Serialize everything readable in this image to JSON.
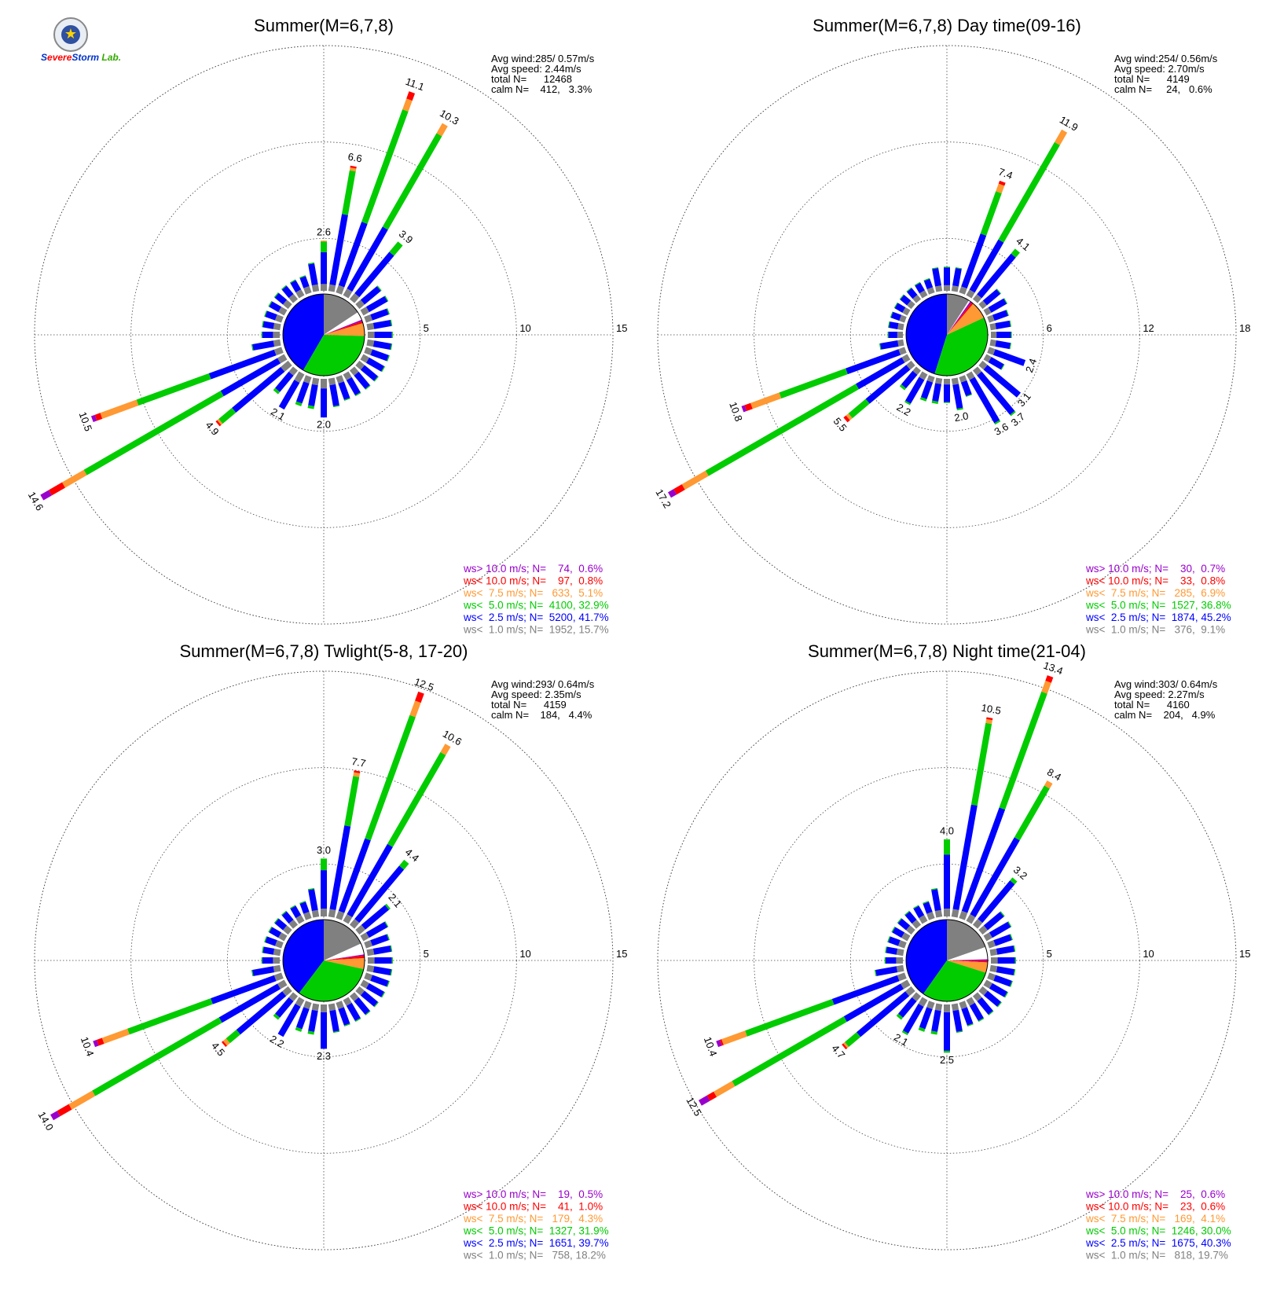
{
  "logo": {
    "text": "Severe Storm Lab."
  },
  "chart_data": [
    {
      "type": "polar-bar",
      "title": "Summer(M=6,7,8)",
      "ring_labels": [
        "5",
        "10",
        "15"
      ],
      "ring_max": 15,
      "stats": {
        "avg_wind": "Avg wind:285/ 0.57m/s",
        "avg_speed": "Avg speed: 2.44m/s",
        "total": "total N=      12468",
        "calm": "calm N=    412,   3.3%"
      },
      "legend": [
        {
          "text": "ws> 10.0 m/s; N=    74,  0.6%",
          "color": "#9900cc"
        },
        {
          "text": "ws< 10.0 m/s; N=    97,  0.8%",
          "color": "#ff0000"
        },
        {
          "text": "ws<  7.5 m/s; N=   633,  5.1%",
          "color": "#ff9933"
        },
        {
          "text": "ws<  5.0 m/s; N=  4100, 32.9%",
          "color": "#00cc00"
        },
        {
          "text": "ws<  2.5 m/s; N=  5200, 41.7%",
          "color": "#0000ff"
        },
        {
          "text": "ws<  1.0 m/s; N=  1952, 15.7%",
          "color": "#808080"
        }
      ],
      "labeled_directions": [
        {
          "dir": 0,
          "total": 2.6,
          "label": "2.6",
          "comp": [
            0.35,
            1.65,
            0.55,
            0.05,
            0,
            0
          ]
        },
        {
          "dir": 10,
          "total": 6.6,
          "label": "6.6",
          "comp": [
            0.35,
            3.7,
            2.3,
            0.15,
            0.1,
            0
          ]
        },
        {
          "dir": 20,
          "total": 11.1,
          "label": "11.1",
          "comp": [
            0.4,
            3.5,
            6.2,
            0.6,
            0.4,
            0
          ]
        },
        {
          "dir": 30,
          "total": 10.3,
          "label": "10.3",
          "comp": [
            0.4,
            3.7,
            5.6,
            0.6,
            0,
            0
          ]
        },
        {
          "dir": 40,
          "total": 3.9,
          "label": "3.9",
          "comp": [
            0.4,
            2.8,
            0.7,
            0,
            0,
            0
          ]
        },
        {
          "dir": 180,
          "total": 2.0,
          "label": "2.0",
          "comp": [
            0.5,
            1.5,
            0,
            0,
            0,
            0
          ]
        },
        {
          "dir": 210,
          "total": 2.1,
          "label": "2.1",
          "comp": [
            0.5,
            1.6,
            0,
            0,
            0,
            0
          ]
        },
        {
          "dir": 230,
          "total": 4.9,
          "label": "4.9",
          "comp": [
            0.5,
            3.3,
            0.9,
            0.1,
            0.1,
            0
          ]
        },
        {
          "dir": 240,
          "total": 14.6,
          "label": "14.6",
          "comp": [
            0.4,
            3.4,
            8.2,
            1.3,
            0.8,
            0.5
          ]
        },
        {
          "dir": 250,
          "total": 10.5,
          "label": "10.5",
          "comp": [
            0.4,
            3.6,
            4.0,
            2.0,
            0.3,
            0.2
          ]
        }
      ],
      "pie": [
        {
          "label": "ws< 2.5",
          "percent": 41.7,
          "color": "#0000ff"
        },
        {
          "label": "ws< 1.0",
          "percent": 15.7,
          "color": "#808080"
        },
        {
          "label": "calm",
          "percent": 3.3,
          "color": "#ffffff"
        },
        {
          "label": "ws> 10.0",
          "percent": 0.6,
          "color": "#9900cc"
        },
        {
          "label": "ws< 10.0",
          "percent": 0.8,
          "color": "#ff0000"
        },
        {
          "label": "ws< 7.5",
          "percent": 5.1,
          "color": "#ff9933"
        },
        {
          "label": "ws< 5.0",
          "percent": 32.9,
          "color": "#00cc00"
        }
      ]
    },
    {
      "type": "polar-bar",
      "title": "Summer(M=6,7,8) Day time(09-16)",
      "ring_labels": [
        "6",
        "12",
        "18"
      ],
      "ring_max": 18,
      "stats": {
        "avg_wind": "Avg wind:254/ 0.56m/s",
        "avg_speed": "Avg speed: 2.70m/s",
        "total": "total N=      4149",
        "calm": "calm N=     24,   0.6%"
      },
      "legend": [
        {
          "text": "ws> 10.0 m/s; N=    30,  0.7%",
          "color": "#9900cc"
        },
        {
          "text": "ws< 10.0 m/s; N=    33,  0.8%",
          "color": "#ff0000"
        },
        {
          "text": "ws<  7.5 m/s; N=   285,  6.9%",
          "color": "#ff9933"
        },
        {
          "text": "ws<  5.0 m/s; N=  1527, 36.8%",
          "color": "#00cc00"
        },
        {
          "text": "ws<  2.5 m/s; N=  1874, 45.2%",
          "color": "#0000ff"
        },
        {
          "text": "ws<  1.0 m/s; N=   376,  9.1%",
          "color": "#808080"
        }
      ],
      "labeled_directions": [
        {
          "dir": 20,
          "total": 7.4,
          "label": "7.4",
          "comp": [
            0.4,
            3.5,
            2.8,
            0.5,
            0.2,
            0
          ]
        },
        {
          "dir": 30,
          "total": 11.9,
          "label": "11.9",
          "comp": [
            0.4,
            3.6,
            7.0,
            0.9,
            0,
            0
          ]
        },
        {
          "dir": 40,
          "total": 4.1,
          "label": "4.1",
          "comp": [
            0.4,
            3.3,
            0.4,
            0,
            0,
            0
          ]
        },
        {
          "dir": 110,
          "total": 2.4,
          "label": "2.4",
          "comp": [
            0.4,
            2.0,
            0,
            0,
            0,
            0
          ]
        },
        {
          "dir": 130,
          "total": 3.1,
          "label": "3.1",
          "comp": [
            0.4,
            2.7,
            0,
            0,
            0,
            0
          ]
        },
        {
          "dir": 140,
          "total": 3.7,
          "label": "3.7",
          "comp": [
            0.4,
            3.2,
            0.1,
            0,
            0,
            0
          ]
        },
        {
          "dir": 150,
          "total": 3.6,
          "label": "3.6",
          "comp": [
            0.4,
            3.1,
            0.1,
            0,
            0,
            0
          ]
        },
        {
          "dir": 170,
          "total": 2.0,
          "label": "2.0",
          "comp": [
            0.4,
            1.5,
            0.1,
            0,
            0,
            0
          ]
        },
        {
          "dir": 210,
          "total": 2.2,
          "label": "2.2",
          "comp": [
            0.4,
            1.7,
            0.1,
            0,
            0,
            0
          ]
        },
        {
          "dir": 230,
          "total": 5.5,
          "label": "5.5",
          "comp": [
            0.4,
            3.3,
            1.4,
            0.2,
            0.2,
            0
          ]
        },
        {
          "dir": 240,
          "total": 17.2,
          "label": "17.2",
          "comp": [
            0.4,
            3.3,
            10.8,
            1.7,
            0.6,
            0.4
          ]
        },
        {
          "dir": 250,
          "total": 10.8,
          "label": "10.8",
          "comp": [
            0.4,
            3.5,
            4.4,
            1.9,
            0.4,
            0.2
          ]
        }
      ],
      "pie": [
        {
          "label": "ws< 2.5",
          "percent": 45.2,
          "color": "#0000ff"
        },
        {
          "label": "ws< 1.0",
          "percent": 9.1,
          "color": "#808080"
        },
        {
          "label": "calm",
          "percent": 0.6,
          "color": "#ffffff"
        },
        {
          "label": "ws> 10.0",
          "percent": 0.7,
          "color": "#9900cc"
        },
        {
          "label": "ws< 10.0",
          "percent": 0.8,
          "color": "#ff0000"
        },
        {
          "label": "ws< 7.5",
          "percent": 6.9,
          "color": "#ff9933"
        },
        {
          "label": "ws< 5.0",
          "percent": 36.8,
          "color": "#00cc00"
        }
      ]
    },
    {
      "type": "polar-bar",
      "title": "Summer(M=6,7,8) Twlight(5-8, 17-20)",
      "ring_labels": [
        "5",
        "10",
        "15"
      ],
      "ring_max": 15,
      "stats": {
        "avg_wind": "Avg wind:293/ 0.64m/s",
        "avg_speed": "Avg speed: 2.35m/s",
        "total": "total N=      4159",
        "calm": "calm N=    184,   4.4%"
      },
      "legend": [
        {
          "text": "ws> 10.0 m/s; N=    19,  0.5%",
          "color": "#9900cc"
        },
        {
          "text": "ws< 10.0 m/s; N=    41,  1.0%",
          "color": "#ff0000"
        },
        {
          "text": "ws<  7.5 m/s; N=   179,  4.3%",
          "color": "#ff9933"
        },
        {
          "text": "ws<  5.0 m/s; N=  1327, 31.9%",
          "color": "#00cc00"
        },
        {
          "text": "ws<  2.5 m/s; N=  1651, 39.7%",
          "color": "#0000ff"
        },
        {
          "text": "ws<  1.0 m/s; N=   758, 18.2%",
          "color": "#808080"
        }
      ],
      "labeled_directions": [
        {
          "dir": 0,
          "total": 3.0,
          "label": "3.0",
          "comp": [
            0.4,
            2.0,
            0.6,
            0,
            0,
            0
          ]
        },
        {
          "dir": 10,
          "total": 7.7,
          "label": "7.7",
          "comp": [
            0.4,
            4.4,
            2.6,
            0.2,
            0.1,
            0
          ]
        },
        {
          "dir": 20,
          "total": 12.5,
          "label": "12.5",
          "comp": [
            0.4,
            4.0,
            6.8,
            0.8,
            0.5,
            0
          ]
        },
        {
          "dir": 30,
          "total": 10.6,
          "label": "10.6",
          "comp": [
            0.4,
            4.2,
            5.5,
            0.5,
            0,
            0
          ]
        },
        {
          "dir": 40,
          "total": 4.4,
          "label": "4.4",
          "comp": [
            0.4,
            3.6,
            0.4,
            0,
            0,
            0
          ]
        },
        {
          "dir": 50,
          "total": 2.1,
          "label": "2.1",
          "comp": [
            0.4,
            1.6,
            0.1,
            0,
            0,
            0
          ]
        },
        {
          "dir": 180,
          "total": 2.3,
          "label": "2.3",
          "comp": [
            0.4,
            1.9,
            0,
            0,
            0,
            0
          ]
        },
        {
          "dir": 210,
          "total": 2.2,
          "label": "2.2",
          "comp": [
            0.4,
            1.8,
            0,
            0,
            0,
            0
          ]
        },
        {
          "dir": 230,
          "total": 4.5,
          "label": "4.5",
          "comp": [
            0.4,
            3.1,
            0.7,
            0.2,
            0.1,
            0
          ]
        },
        {
          "dir": 240,
          "total": 14.0,
          "label": "14.0",
          "comp": [
            0.4,
            3.5,
            7.6,
            1.4,
            0.7,
            0.4
          ]
        },
        {
          "dir": 250,
          "total": 10.4,
          "label": "10.4",
          "comp": [
            0.4,
            3.5,
            4.6,
            1.4,
            0.3,
            0.2
          ]
        }
      ],
      "pie": [
        {
          "label": "ws< 2.5",
          "percent": 39.7,
          "color": "#0000ff"
        },
        {
          "label": "ws< 1.0",
          "percent": 18.2,
          "color": "#808080"
        },
        {
          "label": "calm",
          "percent": 4.4,
          "color": "#ffffff"
        },
        {
          "label": "ws> 10.0",
          "percent": 0.5,
          "color": "#9900cc"
        },
        {
          "label": "ws< 10.0",
          "percent": 1.0,
          "color": "#ff0000"
        },
        {
          "label": "ws< 7.5",
          "percent": 4.3,
          "color": "#ff9933"
        },
        {
          "label": "ws< 5.0",
          "percent": 31.9,
          "color": "#00cc00"
        }
      ]
    },
    {
      "type": "polar-bar",
      "title": "Summer(M=6,7,8) Night time(21-04)",
      "ring_labels": [
        "5",
        "10",
        "15"
      ],
      "ring_max": 15,
      "stats": {
        "avg_wind": "Avg wind:303/ 0.64m/s",
        "avg_speed": "Avg speed: 2.27m/s",
        "total": "total N=      4160",
        "calm": "calm N=    204,   4.9%"
      },
      "legend": [
        {
          "text": "ws> 10.0 m/s; N=    25,  0.6%",
          "color": "#9900cc"
        },
        {
          "text": "ws< 10.0 m/s; N=    23,  0.6%",
          "color": "#ff0000"
        },
        {
          "text": "ws<  7.5 m/s; N=   169,  4.1%",
          "color": "#ff9933"
        },
        {
          "text": "ws<  5.0 m/s; N=  1246, 30.0%",
          "color": "#00cc00"
        },
        {
          "text": "ws<  2.5 m/s; N=  1675, 40.3%",
          "color": "#0000ff"
        },
        {
          "text": "ws<  1.0 m/s; N=   818, 19.7%",
          "color": "#808080"
        }
      ],
      "labeled_directions": [
        {
          "dir": 0,
          "total": 4.0,
          "label": "4.0",
          "comp": [
            0.4,
            2.8,
            0.8,
            0,
            0,
            0
          ]
        },
        {
          "dir": 10,
          "total": 10.5,
          "label": "10.5",
          "comp": [
            0.4,
            5.5,
            4.3,
            0.2,
            0.1,
            0
          ]
        },
        {
          "dir": 20,
          "total": 13.4,
          "label": "13.4",
          "comp": [
            0.4,
            5.7,
            6.4,
            0.6,
            0.3,
            0
          ]
        },
        {
          "dir": 30,
          "total": 8.4,
          "label": "8.4",
          "comp": [
            0.4,
            4.6,
            3.1,
            0.3,
            0,
            0
          ]
        },
        {
          "dir": 40,
          "total": 3.2,
          "label": "3.2",
          "comp": [
            0.4,
            2.6,
            0.2,
            0,
            0,
            0
          ]
        },
        {
          "dir": 180,
          "total": 2.5,
          "label": "2.5",
          "comp": [
            0.4,
            2.0,
            0.1,
            0,
            0,
            0
          ]
        },
        {
          "dir": 210,
          "total": 2.1,
          "label": "2.1",
          "comp": [
            0.4,
            1.6,
            0.1,
            0,
            0,
            0
          ]
        },
        {
          "dir": 230,
          "total": 4.7,
          "label": "4.7",
          "comp": [
            0.4,
            3.3,
            0.8,
            0.1,
            0.1,
            0
          ]
        },
        {
          "dir": 240,
          "total": 12.5,
          "label": "12.5",
          "comp": [
            0.4,
            3.4,
            6.7,
            1.1,
            0.4,
            0.5
          ]
        },
        {
          "dir": 250,
          "total": 10.4,
          "label": "10.4",
          "comp": [
            0.4,
            3.6,
            4.8,
            1.3,
            0.1,
            0.2
          ]
        }
      ],
      "pie": [
        {
          "label": "ws< 2.5",
          "percent": 40.3,
          "color": "#0000ff"
        },
        {
          "label": "ws< 1.0",
          "percent": 19.7,
          "color": "#808080"
        },
        {
          "label": "calm",
          "percent": 4.9,
          "color": "#ffffff"
        },
        {
          "label": "ws> 10.0",
          "percent": 0.6,
          "color": "#9900cc"
        },
        {
          "label": "ws< 10.0",
          "percent": 0.6,
          "color": "#ff0000"
        },
        {
          "label": "ws< 7.5",
          "percent": 4.1,
          "color": "#ff9933"
        },
        {
          "label": "ws< 5.0",
          "percent": 30.0,
          "color": "#00cc00"
        }
      ]
    }
  ]
}
